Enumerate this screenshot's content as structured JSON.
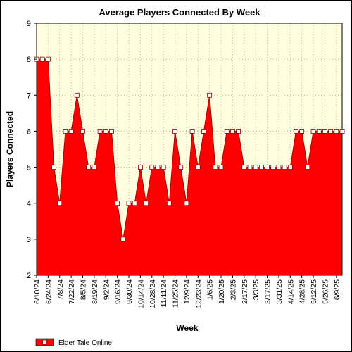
{
  "chart_data": {
    "type": "area",
    "title": "Average Players Connected By Week",
    "xlabel": "Week",
    "ylabel": "Players Connected",
    "ylim": [
      2,
      9
    ],
    "yticks": [
      2,
      3,
      4,
      5,
      6,
      7,
      8,
      9
    ],
    "grid": true,
    "legend_position": "bottom-left",
    "x_tick_labels": [
      "6/10/24",
      "6/24/24",
      "7/8/24",
      "7/22/24",
      "8/5/24",
      "8/19/24",
      "9/2/24",
      "9/16/24",
      "9/30/24",
      "10/14/24",
      "10/28/24",
      "11/11/24",
      "11/25/24",
      "12/9/24",
      "12/23/24",
      "1/6/25",
      "1/20/25",
      "2/3/25",
      "2/17/25",
      "3/3/25",
      "3/17/25",
      "3/31/25",
      "4/14/25",
      "4/28/25",
      "5/12/25",
      "5/26/25",
      "6/9/25"
    ],
    "series": [
      {
        "name": "Elder Tale Online",
        "color": "#ff0000",
        "x": [
          "6/10/24",
          "6/17/24",
          "6/24/24",
          "7/1/24",
          "7/8/24",
          "7/15/24",
          "7/22/24",
          "7/29/24",
          "8/5/24",
          "8/12/24",
          "8/19/24",
          "8/26/24",
          "9/2/24",
          "9/9/24",
          "9/16/24",
          "9/23/24",
          "9/30/24",
          "10/7/24",
          "10/14/24",
          "10/21/24",
          "10/28/24",
          "11/4/24",
          "11/11/24",
          "11/18/24",
          "11/25/24",
          "12/2/24",
          "12/9/24",
          "12/16/24",
          "12/23/24",
          "12/30/24",
          "1/6/25",
          "1/13/25",
          "1/20/25",
          "1/27/25",
          "2/3/25",
          "2/10/25",
          "2/17/25",
          "2/24/25",
          "3/3/25",
          "3/10/25",
          "3/17/25",
          "3/24/25",
          "3/31/25",
          "4/7/25",
          "4/14/25",
          "4/21/25",
          "4/28/25",
          "5/5/25",
          "5/12/25",
          "5/19/25",
          "5/26/25",
          "6/2/25",
          "6/9/25",
          "6/16/25"
        ],
        "values": [
          8,
          8,
          8,
          5,
          4,
          6,
          6,
          7,
          6,
          5,
          5,
          6,
          6,
          6,
          4,
          3,
          4,
          4,
          5,
          4,
          5,
          5,
          5,
          4,
          6,
          5,
          4,
          6,
          5,
          6,
          7,
          5,
          5,
          6,
          6,
          6,
          5,
          5,
          5,
          5,
          5,
          5,
          5,
          5,
          5,
          6,
          6,
          5,
          6,
          6,
          6,
          6,
          6,
          6
        ]
      }
    ],
    "colors": {
      "plot_background": "#ffffe0",
      "fill": "#ff0000",
      "line": "#aa0000"
    }
  }
}
